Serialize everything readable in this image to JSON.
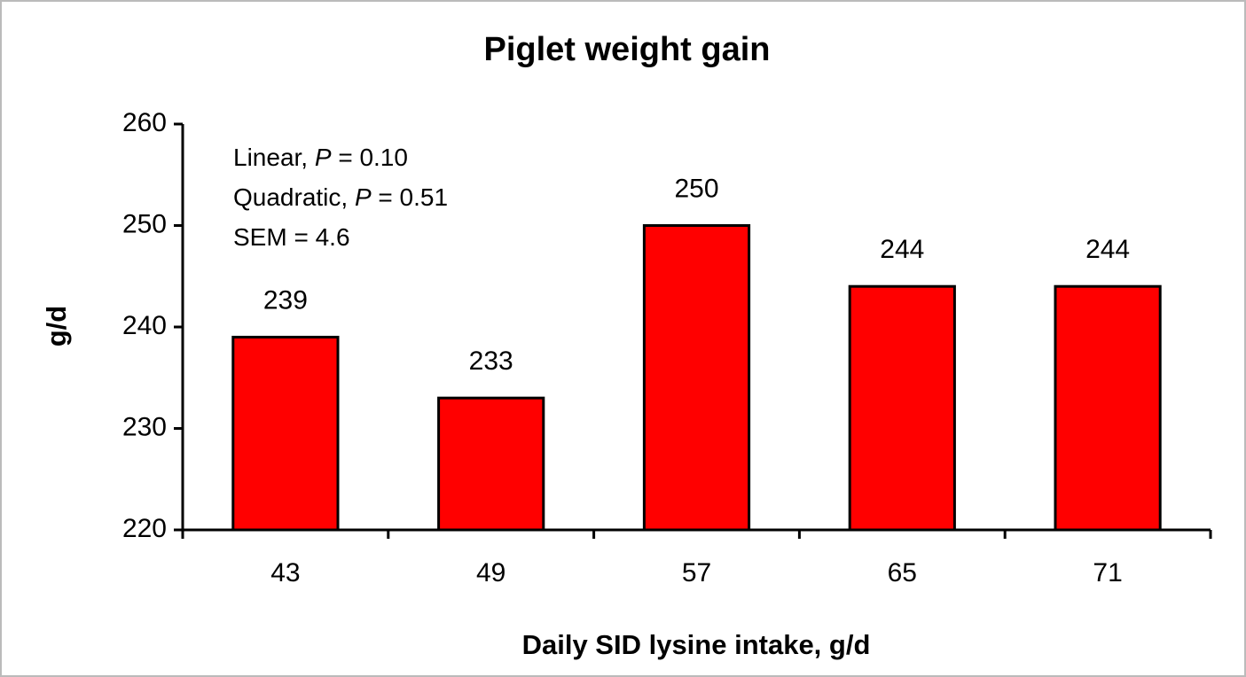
{
  "chart_data": {
    "type": "bar",
    "title": "Piglet weight gain",
    "x_label": "Daily SID lysine intake, g/d",
    "y_label": "g/d",
    "categories": [
      "43",
      "49",
      "57",
      "65",
      "71"
    ],
    "values": [
      239,
      233,
      250,
      244,
      244
    ],
    "color": "#ff0000",
    "ylim": [
      220,
      260
    ],
    "yticks": [
      220,
      230,
      240,
      250,
      260
    ],
    "annotations": [
      [
        "Linear, ",
        "P",
        " = 0.10"
      ],
      [
        "Quadratic, ",
        "P",
        " = 0.51"
      ],
      [
        "SEM = 4.6"
      ]
    ]
  }
}
